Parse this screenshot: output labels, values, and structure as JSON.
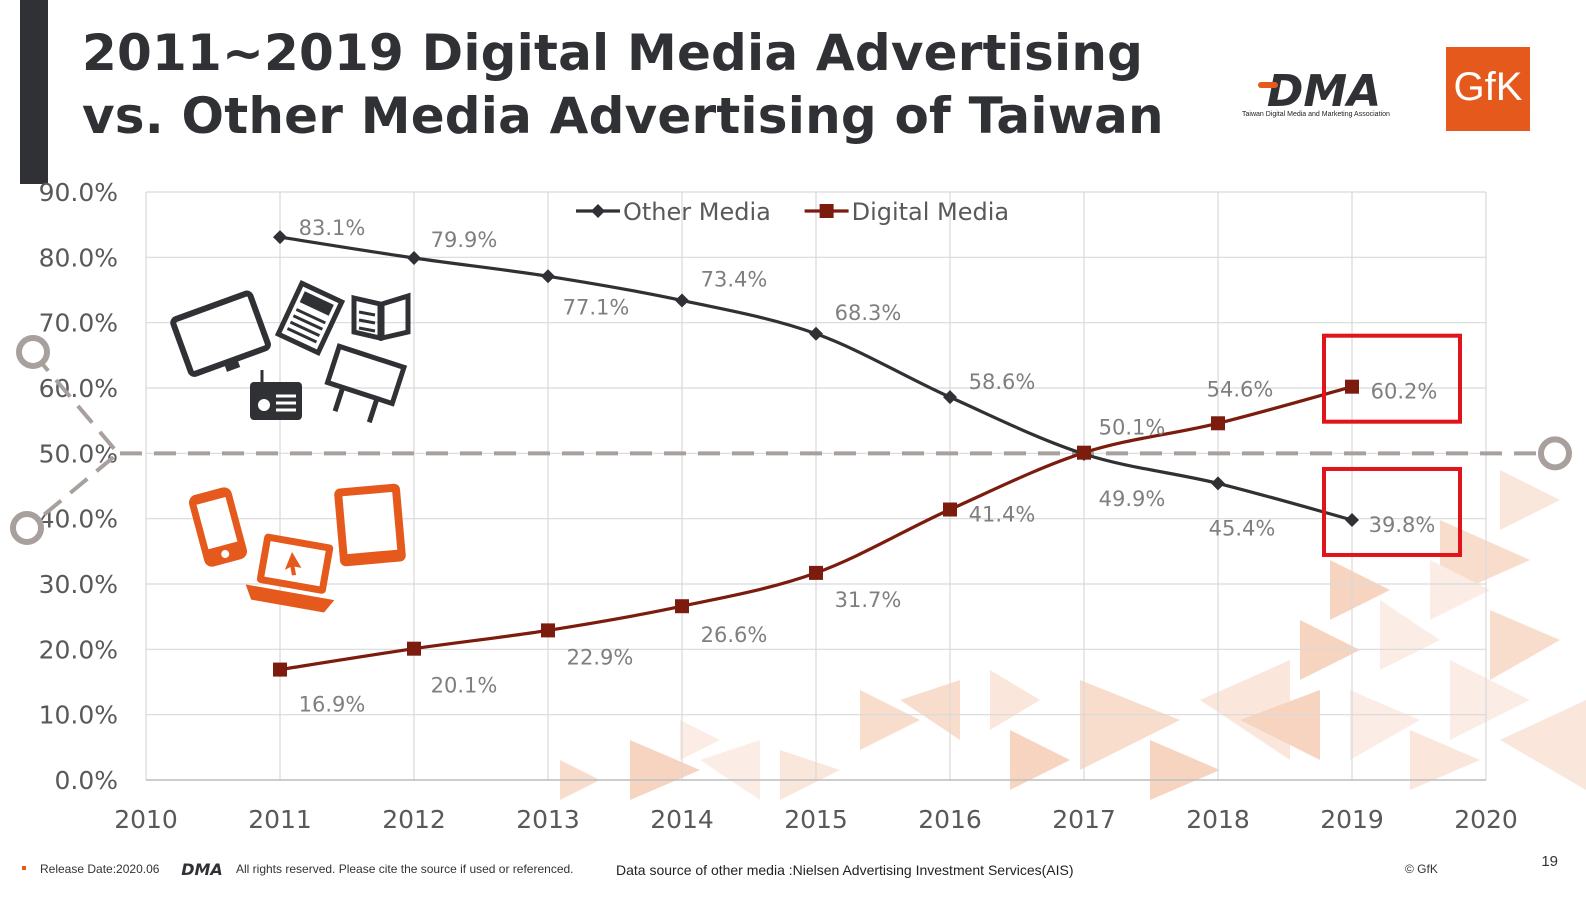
{
  "header": {
    "title_line1": "2011~2019 Digital Media Advertising",
    "title_line2": "vs. Other Media Advertising of Taiwan"
  },
  "logos": {
    "dma_text": "DMA",
    "dma_subtitle": "Taiwan Digital Media and Marketing Association",
    "gfk_text": "GfK"
  },
  "chart_data": {
    "type": "line",
    "x": [
      2011,
      2012,
      2013,
      2014,
      2015,
      2016,
      2017,
      2018,
      2019
    ],
    "xlim": [
      2010,
      2020
    ],
    "x_ticks": [
      "2010",
      "2011",
      "2012",
      "2013",
      "2014",
      "2015",
      "2016",
      "2017",
      "2018",
      "2019",
      "2020"
    ],
    "ylim": [
      0,
      90
    ],
    "y_ticks": [
      "0.0%",
      "10.0%",
      "20.0%",
      "30.0%",
      "40.0%",
      "50.0%",
      "60.0%",
      "70.0%",
      "80.0%",
      "90.0%"
    ],
    "grid": true,
    "legend_position": "top-center",
    "reference_line": 50,
    "series": [
      {
        "name": "Other Media",
        "color": "#2f3135",
        "marker": "diamond",
        "values": [
          83.1,
          79.9,
          77.1,
          73.4,
          68.3,
          58.6,
          49.9,
          45.4,
          39.8
        ],
        "labels": [
          "83.1%",
          "79.9%",
          "77.1%",
          "73.4%",
          "68.3%",
          "58.6%",
          "49.9%",
          "45.4%",
          "39.8%"
        ]
      },
      {
        "name": "Digital Media",
        "color": "#7b1c0e",
        "marker": "square",
        "values": [
          16.9,
          20.1,
          22.9,
          26.6,
          31.7,
          41.4,
          50.1,
          54.6,
          60.2
        ],
        "labels": [
          "16.9%",
          "20.1%",
          "22.9%",
          "26.6%",
          "31.7%",
          "41.4%",
          "50.1%",
          "54.6%",
          "60.2%"
        ]
      }
    ],
    "highlight_color": "#e0141b",
    "accent_color": "#e55a1c"
  },
  "footer": {
    "release": "Release Date:2020.06",
    "rights": "All rights reserved. Please cite the source if used or referenced.",
    "source": "Data source of other media :Nielsen Advertising Investment Services(AIS)",
    "copyright": "© GfK",
    "page_number": "19"
  }
}
